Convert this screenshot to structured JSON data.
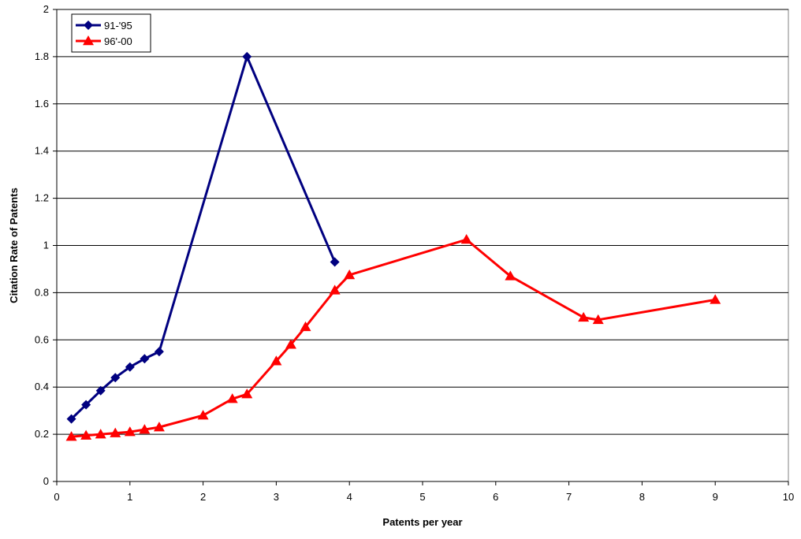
{
  "chart_data": {
    "type": "line",
    "title": "",
    "xlabel": "Patents per year",
    "ylabel": "Citation Rate of Patents",
    "xlim": [
      0,
      10
    ],
    "ylim": [
      0,
      2
    ],
    "x_ticks": [
      0,
      1,
      2,
      3,
      4,
      5,
      6,
      7,
      8,
      9,
      10
    ],
    "x_tick_labels": [
      "0",
      "1",
      "2",
      "3",
      "4",
      "5",
      "6",
      "7",
      "8",
      "9",
      "10"
    ],
    "y_ticks": [
      0,
      0.2,
      0.4,
      0.6,
      0.8,
      1,
      1.2,
      1.4,
      1.6,
      1.8,
      2
    ],
    "y_tick_labels": [
      "0",
      "0.2",
      "0.4",
      "0.6",
      "0.8",
      "1",
      "1.2",
      "1.4",
      "1.6",
      "1.8",
      "2"
    ],
    "grid": "horizontal",
    "legend_position": "top-left",
    "series": [
      {
        "name": "91-'95",
        "color": "#000080",
        "marker": "diamond",
        "x": [
          0.2,
          0.4,
          0.6,
          0.8,
          1.0,
          1.2,
          1.4,
          2.6,
          3.8
        ],
        "y": [
          0.265,
          0.325,
          0.385,
          0.44,
          0.485,
          0.52,
          0.55,
          1.8,
          0.93
        ]
      },
      {
        "name": "96'-00",
        "color": "#ff0000",
        "marker": "triangle",
        "x": [
          0.2,
          0.4,
          0.6,
          0.8,
          1.0,
          1.2,
          1.4,
          2.0,
          2.4,
          2.6,
          3.0,
          3.2,
          3.4,
          3.8,
          4.0,
          5.6,
          6.2,
          7.2,
          7.4,
          9.0
        ],
        "y": [
          0.19,
          0.195,
          0.2,
          0.205,
          0.21,
          0.22,
          0.23,
          0.28,
          0.35,
          0.37,
          0.51,
          0.58,
          0.655,
          0.81,
          0.875,
          1.025,
          0.87,
          0.695,
          0.685,
          0.77
        ]
      }
    ]
  }
}
